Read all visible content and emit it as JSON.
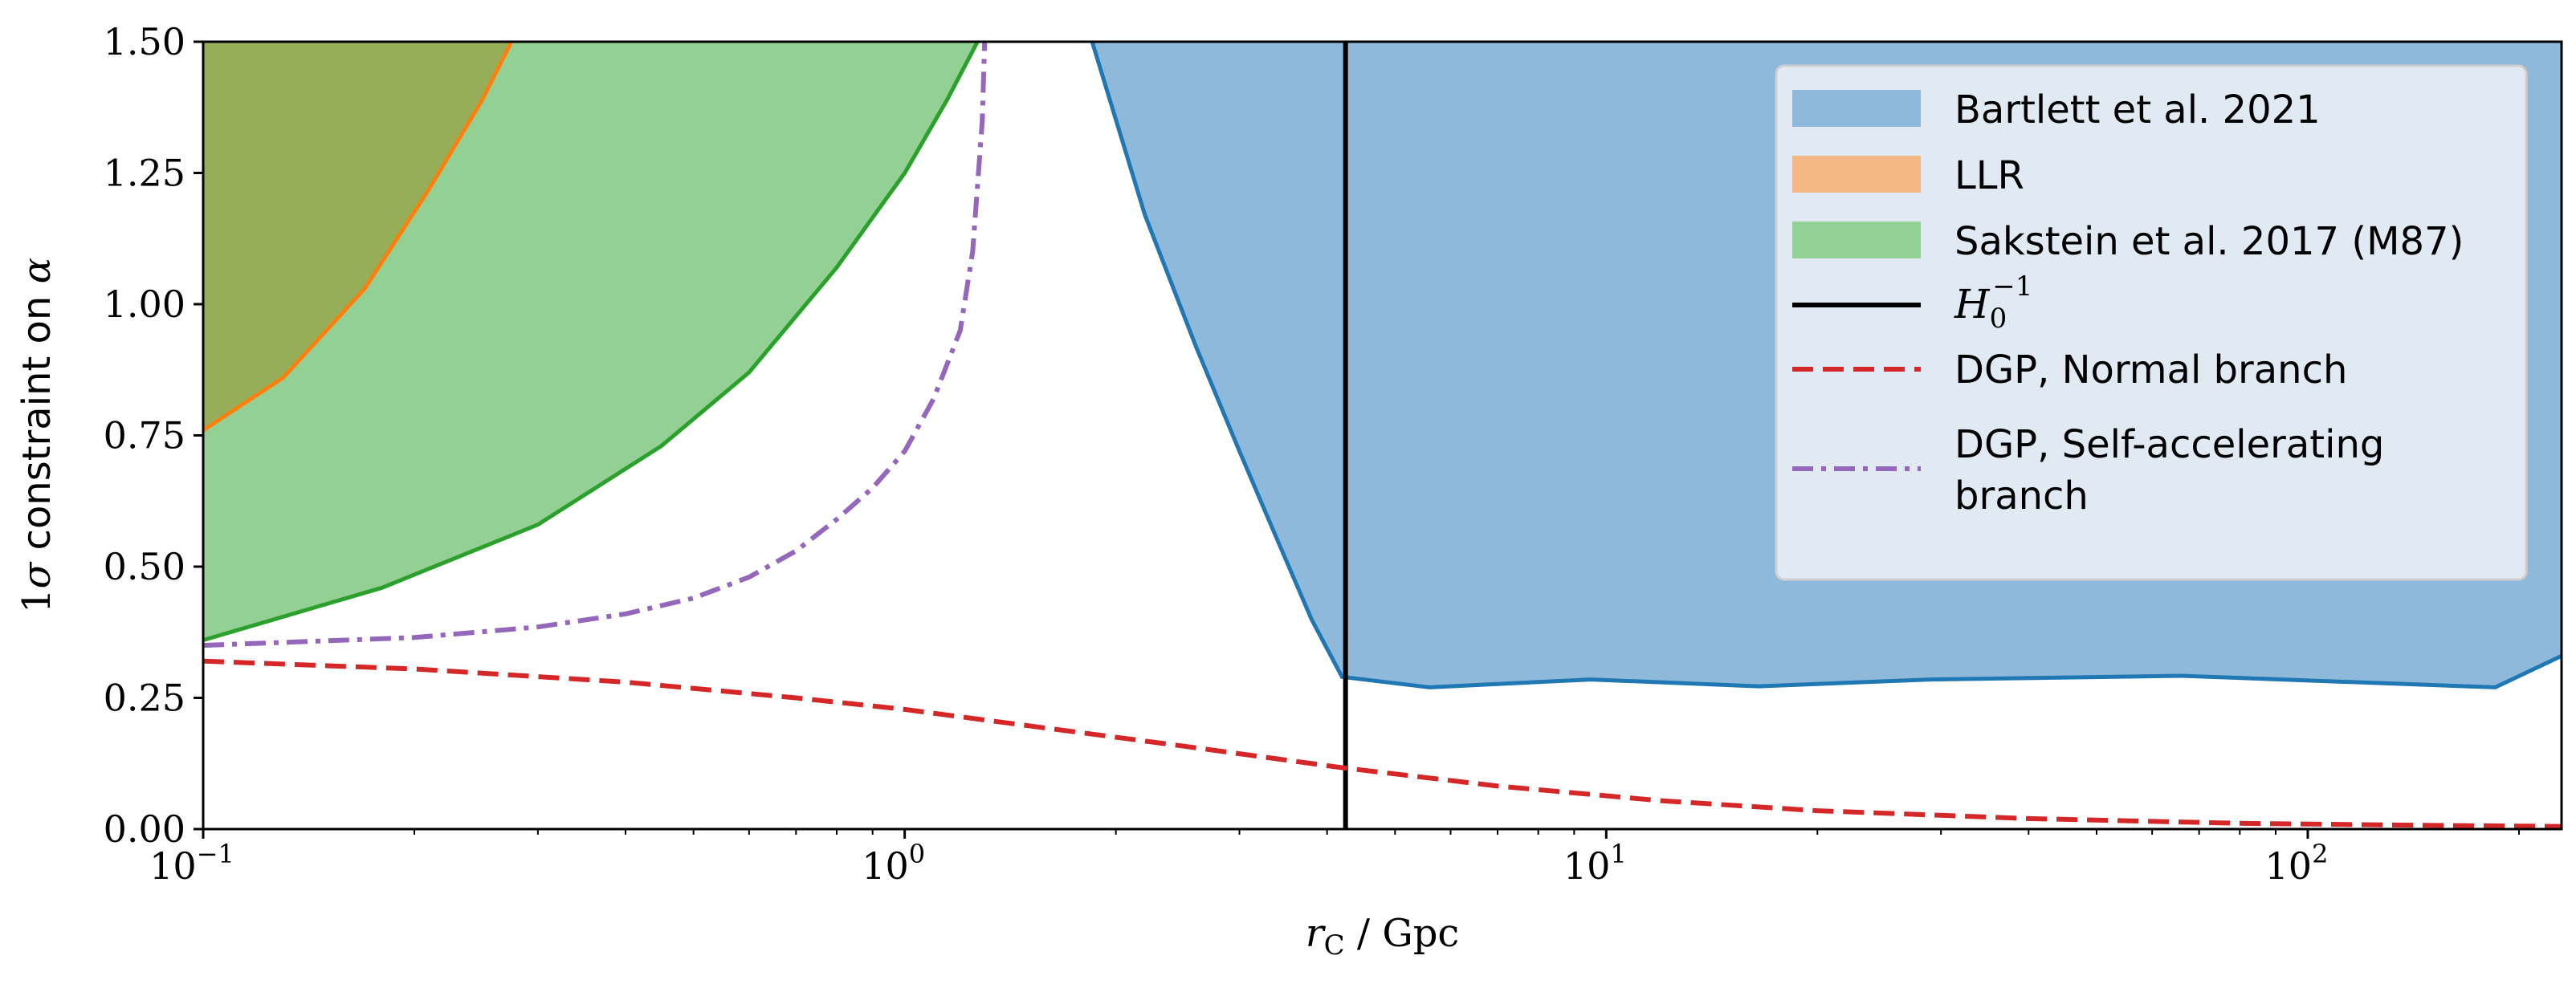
{
  "chart_data": {
    "type": "area",
    "xlabel": "r_C / Gpc",
    "xlabel_main": "r",
    "xlabel_sub": "C",
    "xlabel_rest": " / Gpc",
    "ylabel": "1σ constraint on α",
    "ylabel_prefix": "1",
    "ylabel_sigma": "σ",
    "ylabel_mid": " constraint on ",
    "ylabel_alpha": "α",
    "x_scale": "log",
    "xlim": [
      0.1,
      230
    ],
    "ylim": [
      0.0,
      1.5
    ],
    "x_ticks": [
      {
        "value": 0.1,
        "base": "10",
        "exp": "−1"
      },
      {
        "value": 1,
        "base": "10",
        "exp": "0"
      },
      {
        "value": 10,
        "base": "10",
        "exp": "1"
      },
      {
        "value": 100,
        "base": "10",
        "exp": "2"
      }
    ],
    "y_ticks": [
      {
        "value": 0.0,
        "label": "0.00"
      },
      {
        "value": 0.25,
        "label": "0.25"
      },
      {
        "value": 0.5,
        "label": "0.50"
      },
      {
        "value": 0.75,
        "label": "0.75"
      },
      {
        "value": 1.0,
        "label": "1.00"
      },
      {
        "value": 1.25,
        "label": "1.25"
      },
      {
        "value": 1.5,
        "label": "1.50"
      }
    ],
    "grid": false,
    "legend_position": "top-right",
    "legend": [
      {
        "label": "Bartlett et al. 2021",
        "kind": "patch",
        "fill": "#8fb9da",
        "edge": "#1f77b4"
      },
      {
        "label": "LLR",
        "kind": "patch",
        "fill": "#f4b887",
        "edge": "#ff7f0e"
      },
      {
        "label": "Sakstein et al. 2017 (M87)",
        "kind": "patch",
        "fill": "#93d093",
        "edge": "#2ca02c"
      },
      {
        "label": "H_0^{-1}",
        "label_base": "H",
        "label_sub": "0",
        "label_sup": "−1",
        "kind": "line",
        "color": "#000000",
        "dash": "solid"
      },
      {
        "label": "DGP, Normal branch",
        "kind": "line",
        "color": "#d62728",
        "dash": "dashed"
      },
      {
        "label": "DGP, Self-accelerating branch",
        "label_line1": "DGP, Self-accelerating",
        "label_line2": "branch",
        "kind": "line",
        "color": "#9467bd",
        "dash": "dashdot"
      }
    ],
    "series": [
      {
        "name": "Bartlett et al. 2021",
        "kind": "excluded_region_above",
        "fill": "#8fb9da",
        "edge": "#1f77b4",
        "x": [
          1.85,
          2.2,
          2.6,
          3.0,
          3.4,
          3.8,
          4.2,
          5.6,
          9.5,
          16.5,
          29.0,
          66.0,
          185.0,
          230.0
        ],
        "y": [
          1.5,
          1.17,
          0.92,
          0.72,
          0.55,
          0.4,
          0.29,
          0.27,
          0.285,
          0.272,
          0.285,
          0.292,
          0.27,
          0.33
        ]
      },
      {
        "name": "LLR",
        "kind": "excluded_region_above",
        "fill": "#f4b887",
        "edge": "#ff7f0e",
        "x": [
          0.1,
          0.13,
          0.17,
          0.21,
          0.25,
          0.275
        ],
        "y": [
          0.76,
          0.86,
          1.03,
          1.22,
          1.39,
          1.5
        ]
      },
      {
        "name": "Sakstein et al. 2017 (M87)",
        "kind": "excluded_region_above",
        "fill": "#93d093",
        "edge": "#2ca02c",
        "x": [
          0.1,
          0.18,
          0.3,
          0.45,
          0.6,
          0.8,
          1.0,
          1.15,
          1.27
        ],
        "y": [
          0.36,
          0.46,
          0.58,
          0.73,
          0.87,
          1.07,
          1.25,
          1.39,
          1.5
        ]
      },
      {
        "name": "H_0^{-1}",
        "kind": "vline",
        "color": "#000000",
        "x_value": 4.25
      },
      {
        "name": "DGP, Normal branch",
        "kind": "line",
        "color": "#d62728",
        "dash": "dashed",
        "x": [
          0.1,
          0.2,
          0.4,
          0.7,
          1.0,
          1.5,
          2.5,
          4.2,
          7.0,
          12.0,
          20.0,
          40.0,
          80.0,
          150.0,
          230.0
        ],
        "y": [
          0.32,
          0.305,
          0.28,
          0.25,
          0.228,
          0.197,
          0.158,
          0.117,
          0.082,
          0.054,
          0.035,
          0.02,
          0.011,
          0.007,
          0.005
        ]
      },
      {
        "name": "DGP, Self-accelerating branch",
        "kind": "line",
        "color": "#9467bd",
        "dash": "dashdot",
        "x": [
          0.1,
          0.2,
          0.3,
          0.4,
          0.5,
          0.6,
          0.7,
          0.8,
          0.9,
          1.0,
          1.1,
          1.2,
          1.25,
          1.29,
          1.3
        ],
        "y": [
          0.35,
          0.365,
          0.385,
          0.41,
          0.44,
          0.48,
          0.53,
          0.59,
          0.65,
          0.72,
          0.82,
          0.95,
          1.1,
          1.35,
          1.5
        ]
      }
    ]
  }
}
